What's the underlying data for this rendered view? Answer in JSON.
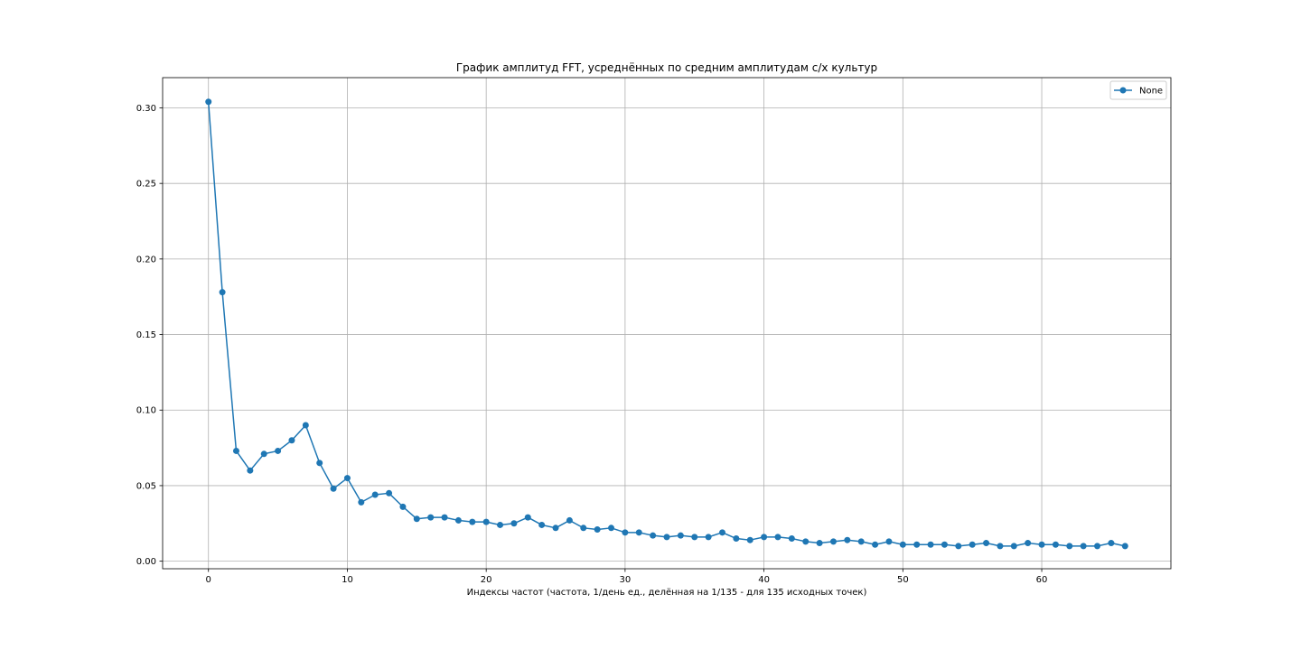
{
  "chart_data": {
    "type": "line",
    "title": "График амплитуд FFT, усреднённых по средним амплитудам с/х культур",
    "xlabel": "Индексы частот (частота, 1/день ед., делённая на 1/135 - для 135 исходных точек)",
    "ylabel": "",
    "xlim": [
      -3.3,
      69.3
    ],
    "ylim": [
      -0.005,
      0.32
    ],
    "x_ticks": [
      0,
      10,
      20,
      30,
      40,
      50,
      60
    ],
    "x_tick_labels": [
      "0",
      "10",
      "20",
      "30",
      "40",
      "50",
      "60"
    ],
    "y_ticks": [
      0.0,
      0.05,
      0.1,
      0.15,
      0.2,
      0.25,
      0.3
    ],
    "y_tick_labels": [
      "0.00",
      "0.05",
      "0.10",
      "0.15",
      "0.20",
      "0.25",
      "0.30"
    ],
    "grid": true,
    "legend_position": "top-right",
    "series": [
      {
        "name": "None",
        "color": "#1f77b4",
        "marker": "circle",
        "x": [
          0,
          1,
          2,
          3,
          4,
          5,
          6,
          7,
          8,
          9,
          10,
          11,
          12,
          13,
          14,
          15,
          16,
          17,
          18,
          19,
          20,
          21,
          22,
          23,
          24,
          25,
          26,
          27,
          28,
          29,
          30,
          31,
          32,
          33,
          34,
          35,
          36,
          37,
          38,
          39,
          40,
          41,
          42,
          43,
          44,
          45,
          46,
          47,
          48,
          49,
          50,
          51,
          52,
          53,
          54,
          55,
          56,
          57,
          58,
          59,
          60,
          61,
          62,
          63,
          64,
          65,
          66
        ],
        "values": [
          0.304,
          0.178,
          0.073,
          0.06,
          0.071,
          0.073,
          0.08,
          0.09,
          0.065,
          0.048,
          0.055,
          0.039,
          0.044,
          0.045,
          0.036,
          0.028,
          0.029,
          0.029,
          0.027,
          0.026,
          0.026,
          0.024,
          0.025,
          0.029,
          0.024,
          0.022,
          0.027,
          0.022,
          0.021,
          0.022,
          0.019,
          0.019,
          0.017,
          0.016,
          0.017,
          0.016,
          0.016,
          0.019,
          0.015,
          0.014,
          0.016,
          0.016,
          0.015,
          0.013,
          0.012,
          0.013,
          0.014,
          0.013,
          0.011,
          0.013,
          0.011,
          0.011,
          0.011,
          0.011,
          0.01,
          0.011,
          0.012,
          0.01,
          0.01,
          0.012,
          0.011,
          0.011,
          0.01,
          0.01,
          0.01,
          0.012,
          0.01
        ]
      }
    ]
  }
}
